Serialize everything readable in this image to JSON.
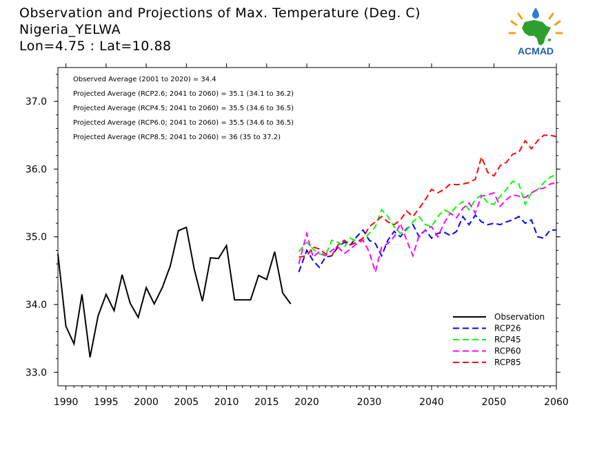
{
  "header": {
    "title_line1": "Observation and Projections of Max. Temperature (Deg. C)",
    "title_line2": "Nigeria_YELWA",
    "title_line3": "Lon=4.75 : Lat=10.88"
  },
  "logo": {
    "text": "ACMAD",
    "icon": "africa-map-logo"
  },
  "chart_data": {
    "type": "line",
    "title": "Observation and Projections of Max. Temperature (Deg. C)",
    "xlabel": "",
    "ylabel": "",
    "xlim": [
      1989,
      2060
    ],
    "ylim": [
      32.8,
      37.5
    ],
    "grid": false,
    "legend_position": "bottom-right",
    "x_ticks": [
      1990,
      1995,
      2000,
      2005,
      2010,
      2015,
      2020,
      2030,
      2040,
      2050,
      2060
    ],
    "x_tick_labels": [
      "1990",
      "1995",
      "2000",
      "2005",
      "2010",
      "2015",
      "2020",
      "2030",
      "2040",
      "2050",
      "2060"
    ],
    "y_ticks": [
      33.0,
      34.0,
      35.0,
      36.0,
      37.0
    ],
    "y_tick_labels": [
      "33.0",
      "34.0",
      "35.0",
      "36.0",
      "37.0"
    ],
    "annotations": [
      "Observed Average (2001 to 2020) = 34.4",
      "Projected Average (RCP2.6; 2041 to 2060) = 35.1 (34.1 to 36.2)",
      "Projected Average (RCP4.5; 2041 to 2060) = 35.5 (34.6 to 36.5)",
      "Projected Average (RCP6.0; 2041 to 2060) = 35.5 (34.6 to 36.5)",
      "Projected Average (RCP8.5; 2041 to 2060) = 36 (35 to 37.2)"
    ],
    "observation": {
      "name": "Observation",
      "color": "#000000",
      "x": [
        1989,
        1990,
        1991,
        1992,
        1993,
        1994,
        1995,
        1996,
        1997,
        1998,
        1999,
        2000,
        2001,
        2002,
        2003,
        2004,
        2005,
        2006,
        2007,
        2008,
        2009,
        2010,
        2011,
        2012,
        2013,
        2014,
        2015,
        2016,
        2017,
        2018,
        2019
      ],
      "values": [
        34.75,
        33.68,
        33.42,
        34.15,
        33.22,
        33.83,
        34.15,
        33.91,
        34.44,
        34.02,
        33.81,
        34.25,
        34.01,
        34.25,
        34.57,
        35.09,
        35.14,
        34.51,
        34.05,
        34.69,
        34.68,
        34.87,
        34.07,
        34.07,
        34.07,
        34.43,
        34.37,
        34.78,
        34.17,
        34.01,
        null
      ]
    },
    "x_projection": [
      2019,
      2020,
      2021,
      2022,
      2023,
      2024,
      2025,
      2026,
      2027,
      2028,
      2029,
      2030,
      2031,
      2032,
      2033,
      2034,
      2035,
      2036,
      2037,
      2038,
      2039,
      2040,
      2041,
      2042,
      2043,
      2044,
      2045,
      2046,
      2047,
      2048,
      2049,
      2050,
      2051,
      2052,
      2053,
      2054,
      2055,
      2056,
      2057,
      2058,
      2059,
      2060
    ],
    "series": [
      {
        "name": "RCP26",
        "color": "#0000ff",
        "values": [
          34.48,
          34.8,
          34.65,
          34.55,
          34.7,
          34.72,
          34.85,
          34.92,
          34.88,
          35.0,
          35.1,
          34.95,
          34.9,
          34.72,
          34.95,
          35.08,
          35.0,
          35.12,
          35.18,
          35.0,
          35.1,
          34.98,
          35.05,
          35.07,
          35.02,
          35.08,
          35.3,
          35.18,
          35.32,
          35.22,
          35.18,
          35.2,
          35.18,
          35.22,
          35.25,
          35.3,
          35.2,
          35.25,
          35.0,
          34.98,
          35.1,
          35.1
        ]
      },
      {
        "name": "RCP45",
        "color": "#00ff00",
        "values": [
          34.78,
          34.92,
          34.82,
          34.75,
          34.72,
          34.95,
          34.92,
          34.85,
          34.98,
          34.93,
          34.95,
          35.05,
          35.15,
          35.4,
          35.3,
          35.15,
          35.05,
          35.1,
          35.22,
          35.3,
          35.18,
          35.15,
          35.3,
          35.4,
          35.35,
          35.45,
          35.52,
          35.4,
          35.55,
          35.62,
          35.5,
          35.48,
          35.6,
          35.7,
          35.82,
          35.78,
          35.48,
          35.65,
          35.7,
          35.8,
          35.88,
          35.92
        ]
      },
      {
        "name": "RCP60",
        "color": "#ff00ff",
        "values": [
          34.6,
          35.05,
          34.7,
          34.78,
          34.72,
          34.8,
          34.85,
          34.75,
          34.82,
          34.9,
          34.95,
          34.78,
          34.48,
          34.85,
          34.9,
          35.0,
          35.2,
          34.95,
          34.72,
          35.02,
          35.1,
          35.15,
          35.0,
          35.2,
          35.35,
          35.28,
          35.42,
          35.5,
          35.35,
          35.6,
          35.62,
          35.65,
          35.45,
          35.55,
          35.62,
          35.6,
          35.58,
          35.65,
          35.7,
          35.72,
          35.78,
          35.8
        ]
      },
      {
        "name": "RCP85",
        "color": "#ff0000",
        "values": [
          34.7,
          34.72,
          34.85,
          34.82,
          34.75,
          34.72,
          34.88,
          34.95,
          34.88,
          34.92,
          34.98,
          35.15,
          35.22,
          35.3,
          35.22,
          35.18,
          35.25,
          35.38,
          35.3,
          35.42,
          35.55,
          35.7,
          35.65,
          35.7,
          35.78,
          35.77,
          35.78,
          35.8,
          35.85,
          36.18,
          35.95,
          35.9,
          36.05,
          36.1,
          36.22,
          36.25,
          36.42,
          36.3,
          36.42,
          36.5,
          36.5,
          36.48
        ]
      }
    ]
  }
}
